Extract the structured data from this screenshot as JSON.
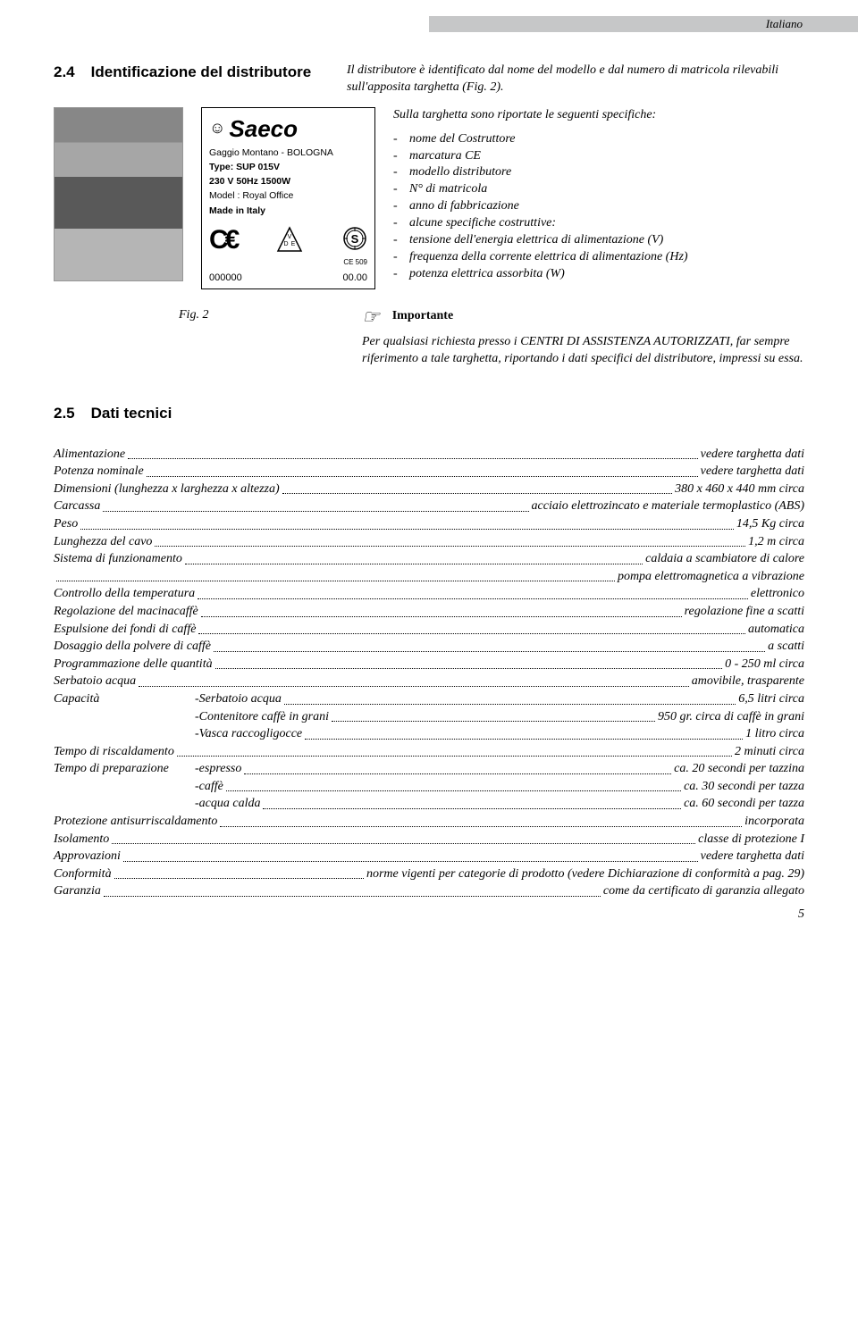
{
  "header": {
    "language": "Italiano"
  },
  "section24": {
    "num": "2.4",
    "title": "Identificazione del distributore",
    "intro": "Il distributore è identificato dal nome del modello e dal numero di matricola rilevabili sull'apposita targhetta (Fig. 2).",
    "spec_intro": "Sulla targhetta sono riportate le seguenti specifiche:",
    "bullets": [
      "nome del Costruttore",
      "marcatura CE",
      "modello distributore",
      "N° di matricola",
      "anno di fabbricazione",
      "alcune specifiche costruttive:"
    ],
    "sub_bullets": [
      "tensione dell'energia elettrica di alimentazione (V)",
      "frequenza della corrente elettrica di alimentazione (Hz)",
      "potenza elettrica assorbita (W)"
    ],
    "fig_label": "Fig. 2",
    "plate": {
      "brand": "Saeco",
      "l1": "Gaggio Montano - BOLOGNA",
      "l2": "Type: SUP 015V",
      "l3": "230 V  50Hz  1500W",
      "l4": "Model : Royal Office",
      "l5": "Made in Italy",
      "cert": "CE 509",
      "serial": "000000",
      "rev": "00.00"
    },
    "important_label": "Importante",
    "important_body": "Per qualsiasi richiesta presso i CENTRI DI ASSISTENZA AUTORIZZATI, far sempre riferimento a tale targhetta, riportando i dati specifici del distributore, impressi su essa."
  },
  "section25": {
    "num": "2.5",
    "title": "Dati tecnici",
    "rows": [
      {
        "label": "Alimentazione",
        "value": "vedere targhetta dati"
      },
      {
        "label": "Potenza nominale",
        "value": "vedere targhetta dati"
      },
      {
        "label": "Dimensioni (lunghezza x larghezza x altezza)",
        "value": "380 x 460 x 440 mm circa"
      },
      {
        "label": "Carcassa",
        "value": "acciaio elettrozincato e materiale termoplastico (ABS)"
      },
      {
        "label": "Peso",
        "value": "14,5 Kg circa"
      },
      {
        "label": "Lunghezza del cavo",
        "value": "1,2 m circa"
      },
      {
        "label": "Sistema di funzionamento",
        "value": "caldaia a scambiatore di calore"
      },
      {
        "label": "",
        "value": "pompa elettromagnetica a vibrazione"
      },
      {
        "label": "Controllo della temperatura",
        "value": "elettronico"
      },
      {
        "label": "Regolazione del macinacaffè",
        "value": "regolazione fine a scatti"
      },
      {
        "label": "Espulsione dei fondi di caffè",
        "value": "automatica"
      },
      {
        "label": "Dosaggio della polvere di caffè",
        "value": "a scatti"
      },
      {
        "label": "Programmazione delle quantità",
        "value": "0 - 250 ml circa"
      },
      {
        "label": "Serbatoio acqua",
        "value": "amovibile, trasparente"
      },
      {
        "label": "Capacità",
        "sub": "-Serbatoio acqua",
        "value": "6,5 litri circa"
      },
      {
        "label": "",
        "sub": "-Contenitore caffè in grani",
        "value": "950 gr. circa di caffè in grani"
      },
      {
        "label": "",
        "sub": "-Vasca raccogligocce",
        "value": "1 litro circa"
      },
      {
        "label": "Tempo di riscaldamento",
        "value": "2 minuti circa"
      },
      {
        "label": "Tempo di preparazione",
        "sub": "-espresso",
        "value": "ca. 20 secondi per tazzina"
      },
      {
        "label": "",
        "sub": "-caffè",
        "value": "ca. 30 secondi per tazza"
      },
      {
        "label": "",
        "sub": "-acqua calda",
        "value": "ca. 60 secondi per tazza"
      },
      {
        "label": "Protezione antisurriscaldamento",
        "value": "incorporata"
      },
      {
        "label": "Isolamento",
        "value": "classe di protezione I"
      },
      {
        "label": "Approvazioni",
        "value": "vedere targhetta dati"
      },
      {
        "label": "Conformità",
        "value": "norme vigenti per categorie di prodotto (vedere Dichiarazione di conformità a pag. 29)"
      },
      {
        "label": "Garanzia",
        "value": "come da certificato di garanzia allegato"
      }
    ]
  },
  "page_number": "5"
}
